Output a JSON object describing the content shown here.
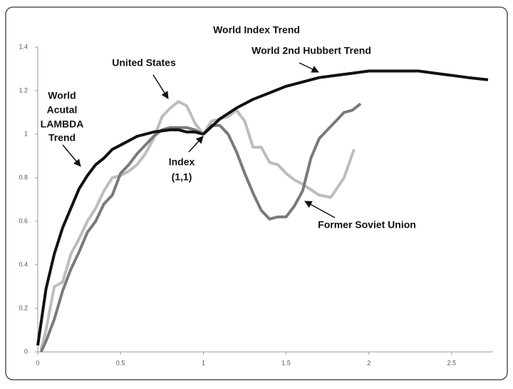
{
  "chart_data": {
    "type": "line",
    "title": "World Index Trend",
    "xlim": [
      0,
      2.75
    ],
    "xticks": [
      0,
      0.5,
      1,
      1.5,
      2,
      2.5
    ],
    "ylim": [
      0,
      1.4
    ],
    "yticks": [
      0,
      0.2,
      0.4,
      0.6,
      0.8,
      1,
      1.2,
      1.4
    ],
    "series": [
      {
        "name": [
          "World",
          "Acutal",
          "LAMBDA",
          "Trend"
        ],
        "color": "#111111",
        "x": [
          0,
          0.05,
          0.1,
          0.15,
          0.2,
          0.25,
          0.3,
          0.35,
          0.4,
          0.45,
          0.5,
          0.55,
          0.6,
          0.7,
          0.8,
          0.85,
          0.9,
          0.95,
          1.0
        ],
        "values": [
          0.03,
          0.29,
          0.45,
          0.57,
          0.66,
          0.75,
          0.81,
          0.86,
          0.89,
          0.93,
          0.95,
          0.97,
          0.99,
          1.01,
          1.02,
          1.02,
          1.01,
          1.01,
          1.0
        ]
      },
      {
        "name": [
          "World 2nd Hubbert Trend"
        ],
        "color": "#111111",
        "x": [
          1,
          1.1,
          1.2,
          1.3,
          1.4,
          1.5,
          1.6,
          1.7,
          1.8,
          1.9,
          2.0,
          2.1,
          2.2,
          2.3,
          2.4,
          2.5,
          2.6,
          2.72
        ],
        "values": [
          1.0,
          1.07,
          1.12,
          1.16,
          1.19,
          1.22,
          1.24,
          1.26,
          1.27,
          1.28,
          1.29,
          1.29,
          1.29,
          1.29,
          1.28,
          1.27,
          1.26,
          1.25
        ]
      },
      {
        "name": [
          "United States"
        ],
        "color": "#bdbdbd",
        "x": [
          0.02,
          0.05,
          0.1,
          0.15,
          0.2,
          0.25,
          0.3,
          0.35,
          0.4,
          0.45,
          0.5,
          0.55,
          0.6,
          0.65,
          0.7,
          0.75,
          0.8,
          0.85,
          0.9,
          0.95,
          1.0,
          1.05,
          1.1,
          1.15,
          1.2,
          1.25,
          1.3,
          1.35,
          1.4,
          1.45,
          1.5,
          1.55,
          1.6,
          1.7,
          1.77,
          1.85,
          1.91
        ],
        "values": [
          0.01,
          0.1,
          0.3,
          0.32,
          0.45,
          0.52,
          0.6,
          0.66,
          0.74,
          0.8,
          0.81,
          0.83,
          0.86,
          0.91,
          0.98,
          1.08,
          1.12,
          1.15,
          1.13,
          1.05,
          1.0,
          1.06,
          1.07,
          1.08,
          1.11,
          1.06,
          0.94,
          0.94,
          0.87,
          0.86,
          0.82,
          0.79,
          0.77,
          0.72,
          0.71,
          0.8,
          0.93
        ]
      },
      {
        "name": [
          "Former Soviet Union"
        ],
        "color": "#7a7a7a",
        "x": [
          0.02,
          0.05,
          0.1,
          0.15,
          0.2,
          0.25,
          0.3,
          0.35,
          0.4,
          0.45,
          0.5,
          0.55,
          0.6,
          0.65,
          0.7,
          0.75,
          0.8,
          0.85,
          0.9,
          0.95,
          1.0,
          1.05,
          1.1,
          1.15,
          1.2,
          1.25,
          1.3,
          1.35,
          1.4,
          1.45,
          1.5,
          1.55,
          1.6,
          1.65,
          1.7,
          1.75,
          1.8,
          1.85,
          1.9,
          1.95
        ],
        "values": [
          0.0,
          0.05,
          0.15,
          0.28,
          0.38,
          0.46,
          0.55,
          0.6,
          0.68,
          0.72,
          0.82,
          0.86,
          0.91,
          0.95,
          0.99,
          1.02,
          1.03,
          1.03,
          1.03,
          1.02,
          1.0,
          1.04,
          1.04,
          1.0,
          0.92,
          0.82,
          0.73,
          0.65,
          0.61,
          0.62,
          0.62,
          0.67,
          0.74,
          0.89,
          0.98,
          1.02,
          1.06,
          1.1,
          1.11,
          1.14
        ]
      }
    ],
    "annotations": [
      {
        "lines": [
          "Index",
          "(1,1)"
        ]
      }
    ]
  }
}
